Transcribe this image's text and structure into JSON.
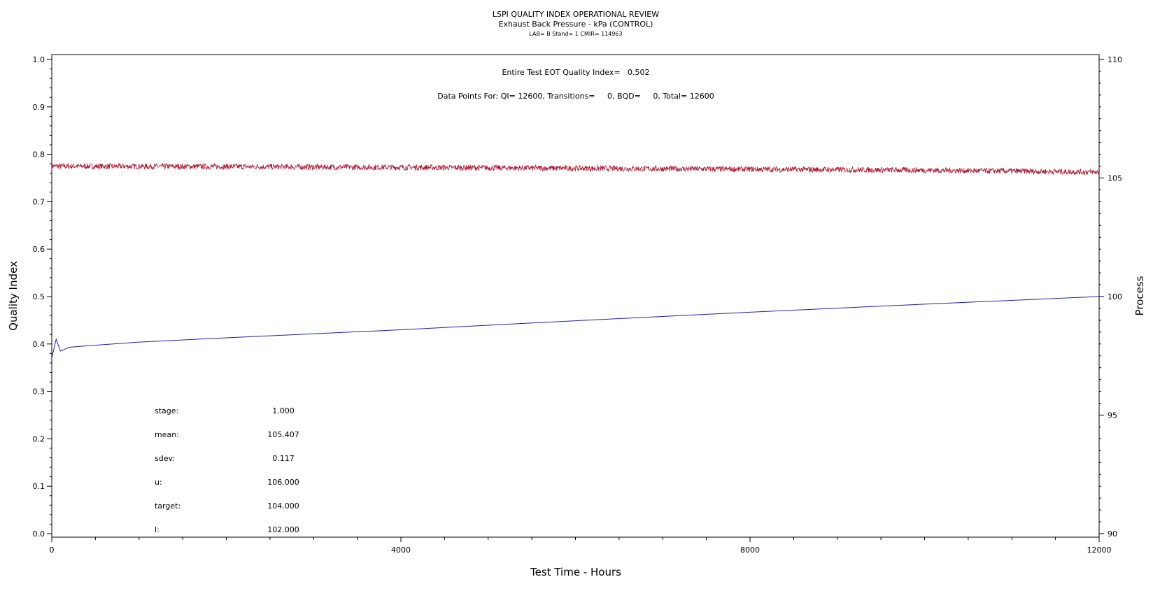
{
  "chart_data": {
    "type": "line",
    "title": "LSPI QUALITY INDEX OPERATIONAL REVIEW",
    "subtitle": "Exhaust Back Pressure - kPa (CONTROL)",
    "header_line": "LAB= B Stand= 1 CMIR= 114963",
    "xlabel": "Test Time - Hours",
    "ylabel_left": "Quality Index",
    "ylabel_right": "Process",
    "xlim": [
      0,
      12000
    ],
    "ylim_left": [
      0.0,
      1.0
    ],
    "ylim_right": [
      90,
      110
    ],
    "x_ticks": [
      "0",
      "4000",
      "8000",
      "12000"
    ],
    "y_left_ticks": [
      "0.0",
      "0.1",
      "0.2",
      "0.3",
      "0.4",
      "0.5",
      "0.6",
      "0.7",
      "0.8",
      "0.9",
      "1.0"
    ],
    "y_right_ticks": [
      "90",
      "95",
      "100",
      "105",
      "110"
    ],
    "annotations": {
      "quality_index": "Entire Test EOT Quality Index=   0.502",
      "data_points": "Data Points For: QI= 12600, Transitions=     0, BQD=     0, Total= 12600"
    },
    "stats": [
      {
        "label": "stage:",
        "value": "1.000"
      },
      {
        "label": "mean:",
        "value": "105.407"
      },
      {
        "label": "sdev:",
        "value": "0.117"
      },
      {
        "label": "u:",
        "value": "106.000"
      },
      {
        "label": "target:",
        "value": "104.000"
      },
      {
        "label": "l:",
        "value": "102.000"
      }
    ],
    "series": [
      {
        "axis": "right",
        "color": "#b0152e",
        "noise": 0.12,
        "x": [
          0,
          2000,
          4000,
          6000,
          8000,
          10000,
          12000
        ],
        "y": [
          105.5,
          105.48,
          105.45,
          105.41,
          105.37,
          105.33,
          105.25
        ]
      },
      {
        "axis": "left",
        "color": "#1f1fb4",
        "x": [
          0,
          50,
          100,
          200,
          400,
          1000,
          2000,
          4000,
          6000,
          8000,
          10000,
          12000
        ],
        "y": [
          0.37,
          0.41,
          0.385,
          0.393,
          0.396,
          0.404,
          0.413,
          0.43,
          0.449,
          0.467,
          0.484,
          0.5
        ]
      }
    ]
  }
}
